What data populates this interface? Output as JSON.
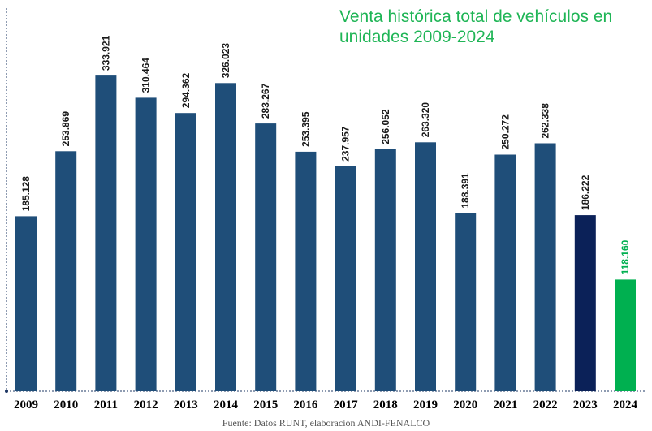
{
  "chart_data": {
    "type": "bar",
    "title": "Venta histórica total de vehículos en unidades 2009-2024",
    "title_lines": [
      "Venta histórica total de vehículos en",
      "unidades 2009-2024"
    ],
    "source": "Fuente: Datos RUNT, elaboración ANDI-FENALCO",
    "categories": [
      "2009",
      "2010",
      "2011",
      "2012",
      "2013",
      "2014",
      "2015",
      "2016",
      "2017",
      "2018",
      "2019",
      "2020",
      "2021",
      "2022",
      "2023",
      "2024"
    ],
    "values": [
      185128,
      253869,
      333921,
      310464,
      294362,
      326023,
      283267,
      253395,
      237957,
      256052,
      263320,
      188391,
      250272,
      262338,
      186222,
      118160
    ],
    "value_labels": [
      "185.128",
      "253.869",
      "333.921",
      "310.464",
      "294.362",
      "326.023",
      "283.267",
      "253.395",
      "237.957",
      "256.052",
      "263.320",
      "188.391",
      "250.272",
      "262.338",
      "186.222",
      "118.160"
    ],
    "ylim": [
      0,
      340000
    ],
    "xlabel": "",
    "ylabel": "",
    "grid": false,
    "legend": "none",
    "colors": {
      "default": "#1f4e79",
      "2023": "#0b2158",
      "2024": "#00b050",
      "label_default": "#1a1a1a",
      "label_2024": "#00b050",
      "title": "#1fb556",
      "axis": "#1f3864"
    }
  }
}
